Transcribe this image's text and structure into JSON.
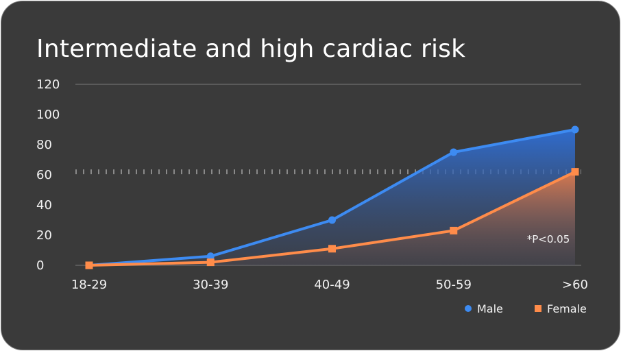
{
  "chart_data": {
    "type": "area",
    "title": "Intermediate and high cardiac risk",
    "categories": [
      "18-29",
      "30-39",
      "40-49",
      "50-59",
      ">60"
    ],
    "series": [
      {
        "name": "Male",
        "values": [
          0,
          6,
          30,
          75,
          90
        ],
        "color": "#3d8bf2",
        "marker": "circle"
      },
      {
        "name": "Female",
        "values": [
          0,
          2,
          11,
          23,
          62
        ],
        "color": "#ff8c4a",
        "marker": "square"
      }
    ],
    "ylim": [
      0,
      120
    ],
    "yticks": [
      "0",
      "20",
      "40",
      "60",
      "80",
      "100",
      "120"
    ],
    "reference_line": {
      "y": 62,
      "style": "dotted"
    },
    "annotation": "*P<0.05",
    "legend": {
      "position": "bottom-right"
    },
    "grid": false,
    "colors": {
      "background": "#3a3a3a",
      "border": "#7a7a7a",
      "axis": "#5a5a5a",
      "reference": "#8a8a8a",
      "text": "#f2f2f2"
    }
  }
}
